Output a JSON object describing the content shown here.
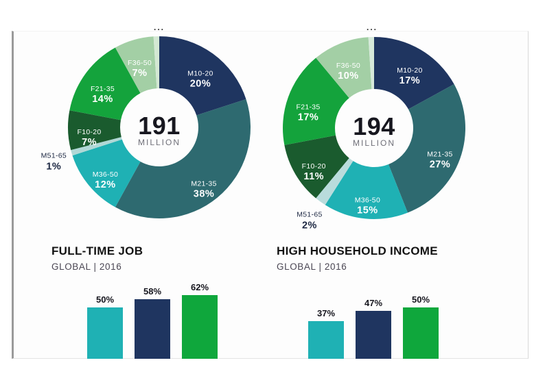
{
  "artifacts": {
    "left": "...",
    "right": "..."
  },
  "chart_data": [
    {
      "id": "audience-size-left",
      "type": "donut",
      "center_value": "191",
      "center_unit": "MILLION",
      "segments": [
        {
          "label": "M10-20",
          "pct_label": "20%",
          "value": 20,
          "color": "#1f3560",
          "label_placement": "inside"
        },
        {
          "label": "M21-35",
          "pct_label": "38%",
          "value": 38,
          "color": "#2e6a70",
          "label_placement": "inside"
        },
        {
          "label": "M36-50",
          "pct_label": "12%",
          "value": 12,
          "color": "#1fb1b4",
          "label_placement": "inside"
        },
        {
          "label": "M51-65",
          "pct_label": "1%",
          "value": 1,
          "color": "#b0d8d6",
          "label_placement": "outside"
        },
        {
          "label": "F10-20",
          "pct_label": "7%",
          "value": 7,
          "color": "#1a5b2e",
          "label_placement": "inside"
        },
        {
          "label": "F21-35",
          "pct_label": "14%",
          "value": 14,
          "color": "#14a33c",
          "label_placement": "inside"
        },
        {
          "label": "F36-50",
          "pct_label": "7%",
          "value": 7,
          "color": "#a3cfa5",
          "label_placement": "inside"
        },
        {
          "label": "",
          "pct_label": "",
          "value": 1,
          "color": "#d3e8d3",
          "label_placement": "none"
        }
      ]
    },
    {
      "id": "audience-size-right",
      "type": "donut",
      "center_value": "194",
      "center_unit": "MILLION",
      "segments": [
        {
          "label": "M10-20",
          "pct_label": "17%",
          "value": 17,
          "color": "#1f3560",
          "label_placement": "inside"
        },
        {
          "label": "M21-35",
          "pct_label": "27%",
          "value": 27,
          "color": "#2e6a70",
          "label_placement": "inside"
        },
        {
          "label": "M36-50",
          "pct_label": "15%",
          "value": 15,
          "color": "#1fb1b4",
          "label_placement": "inside"
        },
        {
          "label": "M51-65",
          "pct_label": "2%",
          "value": 2,
          "color": "#b9dcdc",
          "label_placement": "outside"
        },
        {
          "label": "F10-20",
          "pct_label": "11%",
          "value": 11,
          "color": "#1a5b2e",
          "label_placement": "inside"
        },
        {
          "label": "F21-35",
          "pct_label": "17%",
          "value": 17,
          "color": "#14a33c",
          "label_placement": "inside"
        },
        {
          "label": "F36-50",
          "pct_label": "10%",
          "value": 10,
          "color": "#a3cfa5",
          "label_placement": "inside"
        },
        {
          "label": "",
          "pct_label": "",
          "value": 1,
          "color": "#d6e9da",
          "label_placement": "none"
        }
      ]
    },
    {
      "id": "full-time-job",
      "type": "bar",
      "title": "FULL-TIME JOB",
      "subtitle": "GLOBAL | 2016",
      "bars": [
        {
          "pct_label": "50%",
          "value": 50,
          "color": "#1fb1b4"
        },
        {
          "pct_label": "58%",
          "value": 58,
          "color": "#1f3560"
        },
        {
          "pct_label": "62%",
          "value": 62,
          "color": "#0fa73c"
        }
      ]
    },
    {
      "id": "high-household-income",
      "type": "bar",
      "title": "HIGH HOUSEHOLD INCOME",
      "subtitle": "GLOBAL | 2016",
      "bars": [
        {
          "pct_label": "37%",
          "value": 37,
          "color": "#1fb1b4"
        },
        {
          "pct_label": "47%",
          "value": 47,
          "color": "#1f3560"
        },
        {
          "pct_label": "50%",
          "value": 50,
          "color": "#0fa73c"
        }
      ]
    }
  ]
}
